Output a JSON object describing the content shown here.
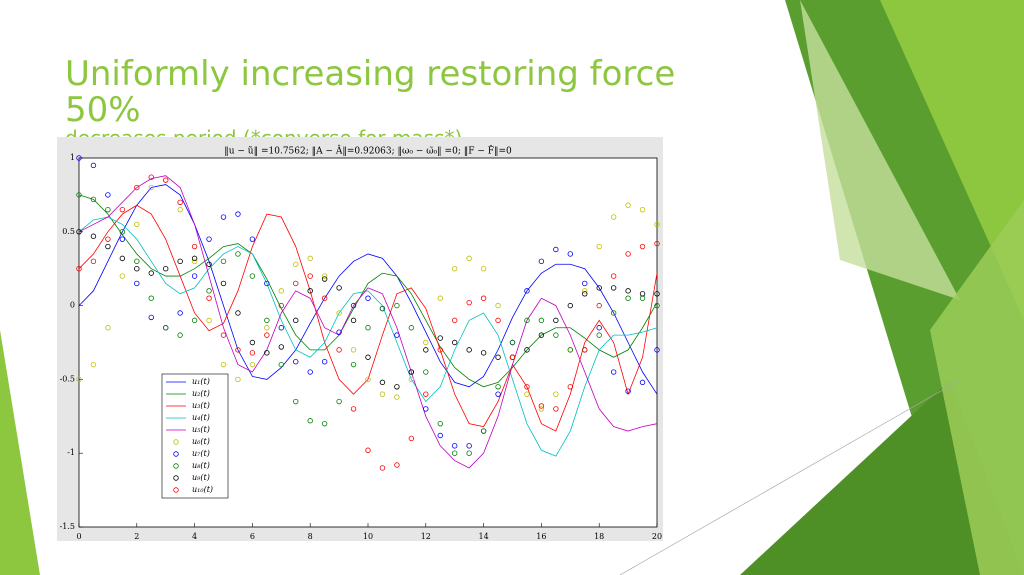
{
  "slide": {
    "title": "Uniformly increasing restoring force 50%",
    "subtitle": "decreases period (*converse for mass*)"
  },
  "chart_data": {
    "type": "line",
    "title": "‖u − ũ‖ =10.7562; ‖A − Â‖=0.92063; ‖ω₀ − ω̃₀‖ =0; ‖F − F̂‖=0",
    "x": [
      0,
      0.5,
      1,
      1.5,
      2,
      2.5,
      3,
      3.5,
      4,
      4.5,
      5,
      5.5,
      6,
      6.5,
      7,
      7.5,
      8,
      8.5,
      9,
      9.5,
      10,
      10.5,
      11,
      11.5,
      12,
      12.5,
      13,
      13.5,
      14,
      14.5,
      15,
      15.5,
      16,
      16.5,
      17,
      17.5,
      18,
      18.5,
      19,
      19.5,
      20
    ],
    "xlim": [
      0,
      20
    ],
    "xticks": [
      0,
      2,
      4,
      6,
      8,
      10,
      12,
      14,
      16,
      18,
      20
    ],
    "ylim": [
      -1.5,
      1
    ],
    "yticks": [
      -1.5,
      -1,
      -0.5,
      0,
      0.5,
      1
    ],
    "grid": false,
    "legend": "lower left",
    "series": [
      {
        "name": "u₁(t)",
        "color": "#0000ff",
        "style": "line",
        "values": [
          0,
          0.1,
          0.3,
          0.5,
          0.68,
          0.8,
          0.82,
          0.75,
          0.55,
          0.3,
          0.0,
          -0.3,
          -0.48,
          -0.5,
          -0.42,
          -0.3,
          -0.12,
          0.05,
          0.2,
          0.3,
          0.35,
          0.32,
          0.2,
          0.02,
          -0.18,
          -0.38,
          -0.52,
          -0.55,
          -0.48,
          -0.3,
          -0.08,
          0.1,
          0.22,
          0.28,
          0.28,
          0.25,
          0.12,
          -0.05,
          -0.25,
          -0.45,
          -0.6
        ]
      },
      {
        "name": "u₂(t)",
        "color": "#008000",
        "style": "line",
        "values": [
          0.75,
          0.72,
          0.62,
          0.48,
          0.35,
          0.25,
          0.2,
          0.2,
          0.25,
          0.32,
          0.4,
          0.42,
          0.35,
          0.18,
          -0.02,
          -0.2,
          -0.3,
          -0.3,
          -0.2,
          -0.02,
          0.15,
          0.22,
          0.2,
          0.08,
          -0.1,
          -0.28,
          -0.42,
          -0.5,
          -0.55,
          -0.52,
          -0.42,
          -0.3,
          -0.2,
          -0.15,
          -0.15,
          -0.22,
          -0.3,
          -0.35,
          -0.3,
          -0.15,
          0.02
        ]
      },
      {
        "name": "u₃(t)",
        "color": "#ff0000",
        "style": "line",
        "values": [
          0.25,
          0.35,
          0.5,
          0.62,
          0.68,
          0.62,
          0.45,
          0.2,
          -0.05,
          -0.17,
          -0.12,
          0.1,
          0.4,
          0.62,
          0.6,
          0.4,
          0.1,
          -0.25,
          -0.5,
          -0.6,
          -0.5,
          -0.2,
          0.08,
          0.12,
          -0.02,
          -0.3,
          -0.6,
          -0.8,
          -0.82,
          -0.65,
          -0.4,
          -0.55,
          -0.8,
          -0.85,
          -0.6,
          -0.25,
          -0.1,
          -0.25,
          -0.6,
          -0.35,
          0.22
        ]
      },
      {
        "name": "u₄(t)",
        "color": "#00bfbf",
        "style": "line",
        "values": [
          0.5,
          0.58,
          0.6,
          0.55,
          0.45,
          0.3,
          0.15,
          0.08,
          0.12,
          0.25,
          0.35,
          0.4,
          0.35,
          0.15,
          -0.1,
          -0.3,
          -0.35,
          -0.25,
          -0.05,
          0.08,
          0.1,
          0.0,
          -0.25,
          -0.5,
          -0.65,
          -0.55,
          -0.3,
          -0.1,
          -0.05,
          -0.2,
          -0.5,
          -0.8,
          -0.98,
          -1.02,
          -0.85,
          -0.55,
          -0.3,
          -0.2,
          -0.2,
          -0.18,
          -0.15
        ]
      },
      {
        "name": "u₅(t)",
        "color": "#bf00bf",
        "style": "line",
        "values": [
          0.5,
          0.55,
          0.6,
          0.7,
          0.8,
          0.86,
          0.88,
          0.8,
          0.55,
          0.2,
          -0.15,
          -0.4,
          -0.45,
          -0.3,
          -0.05,
          0.1,
          0.05,
          -0.15,
          -0.2,
          0.0,
          0.12,
          0.08,
          -0.15,
          -0.45,
          -0.75,
          -0.95,
          -1.05,
          -1.1,
          -1.0,
          -0.75,
          -0.4,
          -0.1,
          0.05,
          0.0,
          -0.2,
          -0.45,
          -0.7,
          -0.82,
          -0.85,
          -0.82,
          -0.8
        ]
      },
      {
        "name": "u₆(t)",
        "color": "#bfbf00",
        "style": "marker",
        "values": [
          -0.5,
          -0.4,
          -0.15,
          0.2,
          0.55,
          0.8,
          0.85,
          0.65,
          0.3,
          -0.1,
          -0.4,
          -0.5,
          -0.4,
          -0.15,
          0.1,
          0.28,
          0.32,
          0.2,
          -0.05,
          -0.3,
          -0.5,
          -0.6,
          -0.62,
          -0.5,
          -0.25,
          0.05,
          0.25,
          0.32,
          0.25,
          0.0,
          -0.35,
          -0.6,
          -0.7,
          -0.6,
          -0.3,
          0.1,
          0.4,
          0.6,
          0.68,
          0.65,
          0.55
        ]
      },
      {
        "name": "u₇(t)",
        "color": "#0000ff",
        "style": "marker",
        "values": [
          1,
          0.95,
          0.75,
          0.45,
          0.15,
          -0.08,
          -0.15,
          -0.05,
          0.2,
          0.45,
          0.6,
          0.62,
          0.45,
          0.15,
          -0.15,
          -0.38,
          -0.45,
          -0.38,
          -0.18,
          0.0,
          0.05,
          -0.02,
          -0.2,
          -0.45,
          -0.7,
          -0.88,
          -0.95,
          -0.95,
          -0.85,
          -0.6,
          -0.25,
          0.1,
          0.3,
          0.38,
          0.35,
          0.15,
          -0.15,
          -0.45,
          -0.58,
          -0.52,
          -0.3
        ]
      },
      {
        "name": "u₈(t)",
        "color": "#008000",
        "style": "marker",
        "values": [
          0.75,
          0.72,
          0.65,
          0.5,
          0.3,
          0.05,
          -0.15,
          -0.2,
          -0.1,
          0.1,
          0.3,
          0.35,
          0.2,
          -0.1,
          -0.4,
          -0.65,
          -0.78,
          -0.8,
          -0.65,
          -0.4,
          -0.15,
          -0.02,
          0.0,
          -0.15,
          -0.45,
          -0.8,
          -1.0,
          -1.0,
          -0.85,
          -0.55,
          -0.25,
          -0.1,
          -0.1,
          -0.2,
          -0.3,
          -0.3,
          -0.2,
          -0.05,
          0.05,
          0.05,
          0.0
        ]
      },
      {
        "name": "u₉(t)",
        "color": "#000000",
        "style": "marker",
        "values": [
          0.5,
          0.47,
          0.4,
          0.32,
          0.25,
          0.22,
          0.25,
          0.3,
          0.32,
          0.28,
          0.15,
          -0.05,
          -0.25,
          -0.32,
          -0.28,
          -0.1,
          0.1,
          0.18,
          0.12,
          -0.1,
          -0.35,
          -0.52,
          -0.55,
          -0.45,
          -0.3,
          -0.22,
          -0.25,
          -0.3,
          -0.32,
          -0.35,
          -0.35,
          -0.3,
          -0.2,
          -0.1,
          0.0,
          0.08,
          0.12,
          0.12,
          0.1,
          0.08,
          0.08
        ]
      },
      {
        "name": "u₁₀(t)",
        "color": "#ff0000",
        "style": "marker",
        "values": [
          0.25,
          0.3,
          0.45,
          0.65,
          0.8,
          0.87,
          0.85,
          0.7,
          0.4,
          0.05,
          -0.2,
          -0.3,
          -0.32,
          -0.2,
          0.0,
          0.15,
          0.2,
          0.05,
          -0.3,
          -0.7,
          -0.98,
          -1.1,
          -1.08,
          -0.9,
          -0.6,
          -0.3,
          -0.1,
          0.02,
          0.05,
          -0.1,
          -0.35,
          -0.55,
          -0.68,
          -0.7,
          -0.55,
          -0.3,
          0.0,
          0.2,
          0.35,
          0.4,
          0.42
        ]
      }
    ]
  }
}
